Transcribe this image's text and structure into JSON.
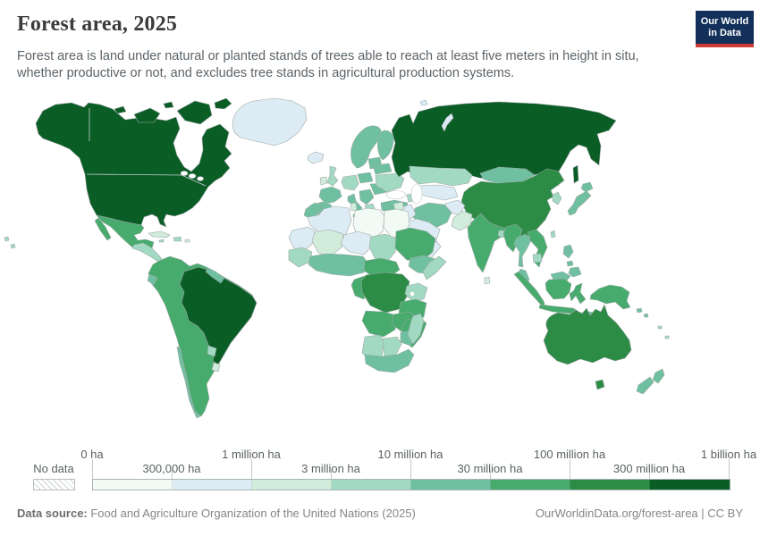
{
  "header": {
    "title": "Forest area, 2025",
    "logo": {
      "line1": "Our World",
      "line2": "in Data"
    }
  },
  "subtitle": "Forest area is land under natural or planted stands of trees able to reach at least five meters in height in situ, whether productive or not, and excludes tree stands in agricultural production systems.",
  "brand": {
    "navy": "#12305a",
    "red": "#cf3b32"
  },
  "legend": {
    "no_data_label": "No data",
    "bins": [
      "#f2faf5",
      "#ddecf4",
      "#d1ecdb",
      "#a2d9c2",
      "#6ec0a0",
      "#47ab6d",
      "#2c8b45",
      "#0b5d26"
    ],
    "tick_labels": [
      {
        "text": "0 ha",
        "pos": 0,
        "row": "top"
      },
      {
        "text": "300,000 ha",
        "pos": 1,
        "row": "bottom"
      },
      {
        "text": "1 million ha",
        "pos": 2,
        "row": "top"
      },
      {
        "text": "3 million ha",
        "pos": 3,
        "row": "bottom"
      },
      {
        "text": "10 million ha",
        "pos": 4,
        "row": "top"
      },
      {
        "text": "30 million ha",
        "pos": 5,
        "row": "bottom"
      },
      {
        "text": "100 million ha",
        "pos": 6,
        "row": "top"
      },
      {
        "text": "300 million ha",
        "pos": 7,
        "row": "bottom"
      },
      {
        "text": "1 billion ha",
        "pos": 8,
        "row": "top"
      }
    ]
  },
  "footer": {
    "datasource_label": "Data source:",
    "datasource_text": " Food and Agriculture Organization of the United Nations (2025)",
    "link_text": "OurWorldinData.org/forest-area",
    "license_text": " | CC BY"
  },
  "chart_data": {
    "type": "choropleth-map",
    "title": "Forest area, 2025",
    "unit": "ha",
    "scale_bin_edges": [
      "0 ha",
      "300,000 ha",
      "1 million ha",
      "3 million ha",
      "10 million ha",
      "30 million ha",
      "100 million ha",
      "300 million ha",
      "1 billion ha"
    ],
    "legend_position": "bottom"
  },
  "map": {
    "regions": {
      "north-america": 7,
      "arctic-island-1": 7,
      "arctic-island-2": 7,
      "arctic-island-3": 7,
      "arctic-island-4": 7,
      "arctic-island-5": 7,
      "greenland": 1,
      "iceland": 1,
      "mexico": 5,
      "baja": 5,
      "central-america": 3,
      "cuba": 2,
      "hispaniola": 3,
      "jamaica": 3,
      "puerto-rico": 2,
      "pacific-dot-1": 3,
      "pacific-dot-2": 3,
      "south-america": 5,
      "brazil": 7,
      "guyanas": 4,
      "uruguay": 2,
      "chile": 4,
      "paraguay": 3,
      "ecuador": 4,
      "scandinavia": 4,
      "finland": 4,
      "uk": 3,
      "ireland": 2,
      "france": 4,
      "iberia": 4,
      "central-europe": 3,
      "poland": 4,
      "baltics": 4,
      "italy": 4,
      "sicily": 4,
      "balkans": 4,
      "greece": 3,
      "romania": 4,
      "ukraine": 3,
      "belarus": 4,
      "turkey": 4,
      "caucasus": 3,
      "russia": 7,
      "sakhalin": 7,
      "novaya-zemlya": 1,
      "svalbard": 1,
      "kazakhstan": 3,
      "central-asia": 1,
      "mongolia": 4,
      "china": 6,
      "hainan": 5,
      "taiwan": 3,
      "korea": 3,
      "japan-hokkaido": 4,
      "japan-honshu": 4,
      "india": 5,
      "sri-lanka": 2,
      "bangladesh": 3,
      "pakistan": 2,
      "afghanistan": 1,
      "iran": 4,
      "iraq": 1,
      "syria": 2,
      "saudi": 1,
      "yemen-oman": 1,
      "morocco": 4,
      "algeria": 1,
      "tunisia": 2,
      "libya": 0,
      "egypt": 0,
      "mauritania": 1,
      "mali": 2,
      "niger": 1,
      "chad": 3,
      "sudan": 5,
      "ethiopia": 4,
      "somalia": 3,
      "senegal-guinea": 3,
      "west-africa-coast": 4,
      "cameroon-car": 5,
      "gabon-congo": 5,
      "drc": 6,
      "uganda-kenya": 3,
      "tanzania": 5,
      "angola": 5,
      "zambia": 5,
      "mozambique": 5,
      "zimbabwe": 4,
      "namibia": 3,
      "botswana": 3,
      "south-africa": 4,
      "madagascar": 3,
      "myanmar": 5,
      "thailand": 4,
      "vietnam-laos": 5,
      "cambodia": 3,
      "malaysia": 4,
      "malaysia-borneo": 4,
      "sumatra": 5,
      "borneo": 5,
      "java": 5,
      "sulawesi": 5,
      "lesser-sunda": 4,
      "timor": 4,
      "philippines-luzon": 4,
      "philippines-visayas": 4,
      "philippines-mindanao": 4,
      "new-guinea": 5,
      "solomon-1": 4,
      "solomon-2": 4,
      "fiji": 3,
      "vanuatu": 3,
      "australia": 6,
      "tasmania": 6,
      "nz-north": 4,
      "nz-south": 4
    }
  }
}
